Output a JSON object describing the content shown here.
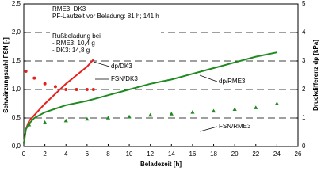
{
  "chart_data": {
    "type": "line",
    "x_label": "Beladezeit [h]",
    "y_label": "Schwärzungszahl FSN [-]",
    "y2_label": "Druckdifferenz dp [kPa]",
    "notes": [
      "RME3; DK3",
      "PF-Laufzeit vor Beladung: 81 h; 141 h",
      "Rußbeladung bei",
      "- RME3: 10,4 g",
      "- DK3:    14,8 g"
    ],
    "annotations": [
      "dp/DK3",
      "FSN/DK3",
      "dp/RME3",
      "FSN/RME3"
    ],
    "xlim": [
      0,
      26
    ],
    "xticks": [
      0,
      2,
      4,
      6,
      8,
      10,
      12,
      14,
      16,
      18,
      20,
      22,
      24,
      26
    ],
    "ylim": [
      0,
      2.5
    ],
    "yticks": [
      {
        "value": 0,
        "label": "0,0"
      },
      {
        "value": 0.5,
        "label": "0,5"
      },
      {
        "value": 1,
        "label": "1,0"
      },
      {
        "value": 1.5,
        "label": "1,5"
      },
      {
        "value": 2,
        "label": "2,0"
      },
      {
        "value": 2.5,
        "label": "2,5"
      }
    ],
    "y2lim": [
      0,
      5
    ],
    "y2ticks": [
      0,
      1,
      2,
      3,
      4,
      5
    ],
    "grid": true,
    "series": [
      {
        "name": "dp/DK3",
        "color": "#e8201c",
        "axis": "y2",
        "style": "line",
        "x": [
          0,
          0.2,
          0.5,
          1,
          2,
          3,
          4,
          5,
          6,
          6.6
        ],
        "values": [
          0.1,
          0.6,
          0.9,
          1.1,
          1.5,
          1.85,
          2.2,
          2.5,
          2.8,
          3.05
        ]
      },
      {
        "name": "FSN/DK3",
        "color": "#e8201c",
        "axis": "y",
        "style": "circle",
        "x": [
          0.2,
          1,
          2,
          3,
          4,
          5,
          6,
          6.6
        ],
        "values": [
          1.32,
          1.2,
          1.1,
          1.05,
          1.0,
          1.0,
          1.0,
          1.0
        ]
      },
      {
        "name": "dp/RME3",
        "color": "#1f8a1f",
        "axis": "y2",
        "style": "line",
        "x": [
          0,
          0.2,
          0.5,
          1,
          2,
          4,
          6,
          8,
          10,
          12,
          14,
          16,
          18,
          20,
          22,
          24
        ],
        "values": [
          0.1,
          0.6,
          0.8,
          1.0,
          1.2,
          1.45,
          1.6,
          1.8,
          2.0,
          2.2,
          2.35,
          2.55,
          2.75,
          2.95,
          3.15,
          3.3
        ]
      },
      {
        "name": "FSN/RME3",
        "color": "#1f8a1f",
        "axis": "y",
        "style": "triangle",
        "x": [
          0.5,
          2,
          4,
          6,
          8,
          10,
          12,
          14,
          16,
          18,
          20,
          22,
          24
        ],
        "values": [
          0.38,
          0.42,
          0.45,
          0.48,
          0.5,
          0.52,
          0.55,
          0.57,
          0.6,
          0.62,
          0.65,
          0.68,
          0.75
        ]
      }
    ]
  }
}
